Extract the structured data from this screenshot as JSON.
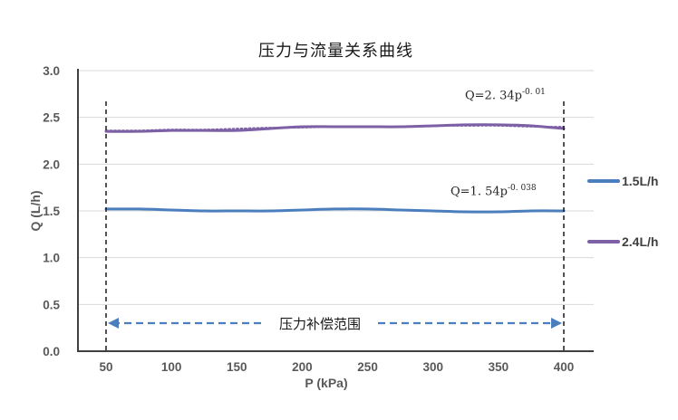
{
  "chart_data": {
    "type": "line",
    "title": "压力与流量关系曲线",
    "xlabel": "P (kPa)",
    "ylabel": "Q (L/h)",
    "x_ticks": [
      50,
      100,
      150,
      200,
      250,
      300,
      350,
      400
    ],
    "y_ticks": [
      "0.0",
      "0.5",
      "1.0",
      "1.5",
      "2.0",
      "2.5",
      "3.0"
    ],
    "xlim": [
      28,
      423
    ],
    "ylim": [
      0,
      3.0
    ],
    "grid": "horizontal-only",
    "legend_position": "right",
    "x": [
      50,
      75,
      100,
      125,
      150,
      175,
      200,
      225,
      250,
      275,
      300,
      325,
      350,
      375,
      400
    ],
    "series": [
      {
        "name": "1.5L/h",
        "color": "#4a7ebd",
        "style": "solid",
        "width": 3,
        "values": [
          1.52,
          1.52,
          1.51,
          1.5,
          1.5,
          1.5,
          1.51,
          1.52,
          1.52,
          1.51,
          1.5,
          1.49,
          1.49,
          1.5,
          1.5
        ]
      },
      {
        "name": "2.4L/h",
        "color": "#7d60a5",
        "style": "solid",
        "width": 3,
        "values": [
          2.35,
          2.35,
          2.36,
          2.36,
          2.36,
          2.38,
          2.4,
          2.4,
          2.4,
          2.4,
          2.41,
          2.42,
          2.42,
          2.41,
          2.38
        ]
      },
      {
        "name": "2.4L/h power-fit trendline",
        "color": "#7d60a5",
        "style": "dotted",
        "width": 1.8,
        "values": [
          2.36,
          2.36,
          2.37,
          2.37,
          2.38,
          2.39,
          2.39,
          2.4,
          2.4,
          2.4,
          2.41,
          2.41,
          2.41,
          2.4,
          2.4
        ]
      }
    ],
    "annotations": [
      {
        "base": "Q=2. 34p",
        "exponent": "-0. 01"
      },
      {
        "base": "Q=1. 54p",
        "exponent": "-0. 038"
      }
    ],
    "compensation_range": {
      "label": "压力补偿范围",
      "from_kpa": 50,
      "to_kpa": 400
    }
  },
  "legend": {
    "items": [
      {
        "label": "1.5L/h",
        "color": "#4a7ebd"
      },
      {
        "label": "2.4L/h",
        "color": "#7d60a5"
      }
    ]
  },
  "colors": {
    "axis": "#404040",
    "grid": "#d9d9d9",
    "tick_text": "#595959",
    "range_dash": "#1a1a1a",
    "arrow": "#4a7ebd"
  }
}
